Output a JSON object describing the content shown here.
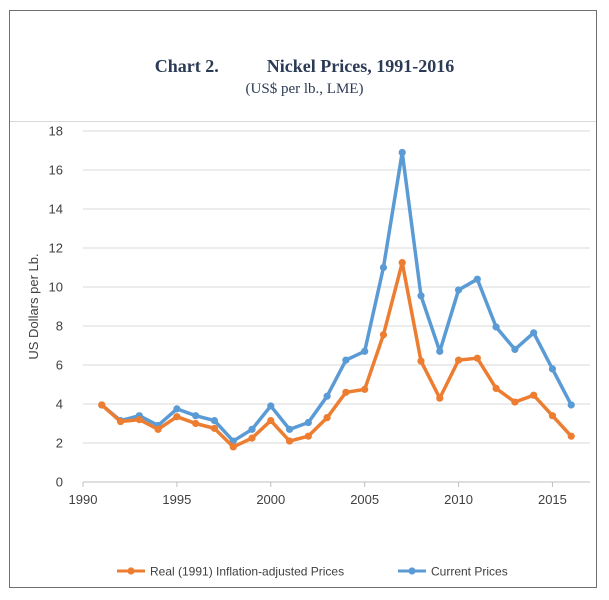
{
  "chart_data": {
    "type": "line",
    "title_number": "Chart 2.",
    "title": "Nickel Prices, 1991-2016",
    "subtitle": "(US$ per lb., LME)",
    "ylabel": "US Dollars per Lb.",
    "xlabel": "",
    "xlim": [
      1990,
      2017
    ],
    "ylim": [
      0,
      18
    ],
    "x_ticks": [
      1990,
      1995,
      2000,
      2005,
      2010,
      2015
    ],
    "y_ticks": [
      0,
      2,
      4,
      6,
      8,
      10,
      12,
      14,
      16,
      18
    ],
    "grid": "horizontal",
    "legend_position": "bottom",
    "x": [
      1991,
      1992,
      1993,
      1994,
      1995,
      1996,
      1997,
      1998,
      1999,
      2000,
      2001,
      2002,
      2003,
      2004,
      2005,
      2006,
      2007,
      2008,
      2009,
      2010,
      2011,
      2012,
      2013,
      2014,
      2015,
      2016
    ],
    "series": [
      {
        "name": "Real (1991) Inflation-adjusted Prices",
        "color": "#ed7d31",
        "values": [
          3.95,
          3.1,
          3.2,
          2.7,
          3.35,
          3.0,
          2.75,
          1.8,
          2.25,
          3.15,
          2.1,
          2.35,
          3.3,
          4.6,
          4.75,
          7.55,
          11.25,
          6.2,
          4.3,
          6.25,
          6.35,
          4.8,
          4.1,
          4.45,
          3.4,
          2.35
        ]
      },
      {
        "name": "Current Prices",
        "color": "#5b9bd5",
        "values": [
          3.95,
          3.15,
          3.4,
          2.9,
          3.75,
          3.4,
          3.15,
          2.1,
          2.7,
          3.9,
          2.7,
          3.05,
          4.4,
          6.25,
          6.7,
          11.0,
          16.9,
          9.55,
          6.7,
          9.85,
          10.4,
          7.95,
          6.8,
          7.65,
          5.8,
          3.95
        ]
      }
    ]
  }
}
